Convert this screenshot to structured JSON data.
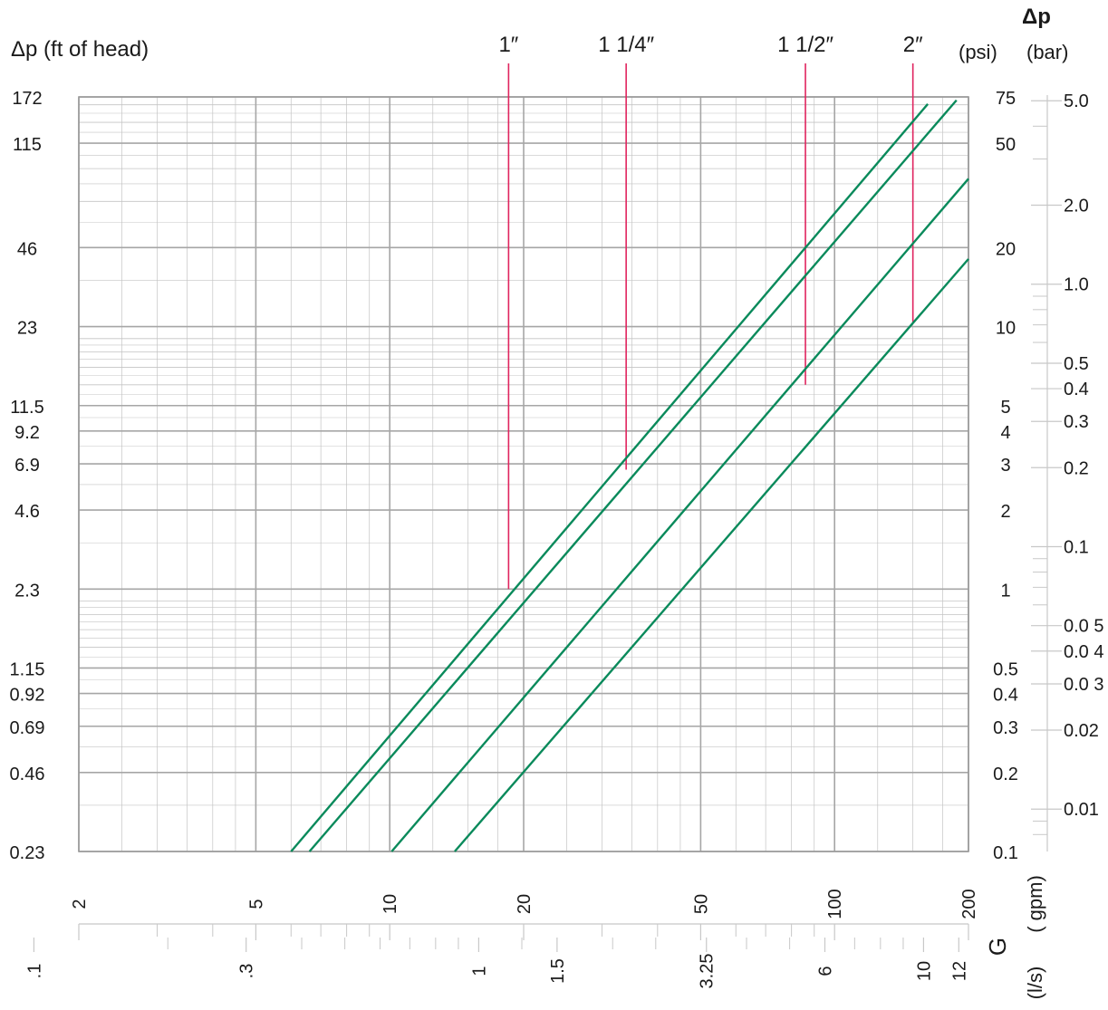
{
  "chart_data": {
    "type": "line",
    "scale": "log-log",
    "left_axis_title": "Δp (ft of head)",
    "left_ticks": [
      {
        "psi": 75,
        "label": "172"
      },
      {
        "psi": 50,
        "label": "115"
      },
      {
        "psi": 20,
        "label": "46"
      },
      {
        "psi": 10,
        "label": "23"
      },
      {
        "psi": 5,
        "label": "11.5"
      },
      {
        "psi": 4,
        "label": "9.2"
      },
      {
        "psi": 3,
        "label": "6.9"
      },
      {
        "psi": 2,
        "label": "4.6"
      },
      {
        "psi": 1,
        "label": "2.3"
      },
      {
        "psi": 0.5,
        "label": "1.15"
      },
      {
        "psi": 0.4,
        "label": "0.92"
      },
      {
        "psi": 0.3,
        "label": "0.69"
      },
      {
        "psi": 0.2,
        "label": "0.46"
      },
      {
        "psi": 0.1,
        "label": "0.23"
      }
    ],
    "psi_title": "(psi)",
    "psi_ticks": [
      {
        "psi": 75,
        "label": "75"
      },
      {
        "psi": 50,
        "label": "50"
      },
      {
        "psi": 20,
        "label": "20"
      },
      {
        "psi": 10,
        "label": "10"
      },
      {
        "psi": 5,
        "label": "5"
      },
      {
        "psi": 4,
        "label": "4"
      },
      {
        "psi": 3,
        "label": "3"
      },
      {
        "psi": 2,
        "label": "2"
      },
      {
        "psi": 1,
        "label": "1"
      },
      {
        "psi": 0.5,
        "label": "0.5"
      },
      {
        "psi": 0.4,
        "label": "0.4"
      },
      {
        "psi": 0.3,
        "label": "0.3"
      },
      {
        "psi": 0.2,
        "label": "0.2"
      },
      {
        "psi": 0.1,
        "label": "0.1"
      }
    ],
    "bar_title_symbol": "Δp",
    "bar_title": "(bar)",
    "bar_labeled": [
      {
        "bar": 5.0,
        "label": "5.0"
      },
      {
        "bar": 2.0,
        "label": "2.0"
      },
      {
        "bar": 1.0,
        "label": "1.0"
      },
      {
        "bar": 0.5,
        "label": "0.5"
      },
      {
        "bar": 0.4,
        "label": "0.4"
      },
      {
        "bar": 0.3,
        "label": "0.3"
      },
      {
        "bar": 0.2,
        "label": "0.2"
      },
      {
        "bar": 0.1,
        "label": "0.1"
      },
      {
        "bar": 0.05,
        "label": "0.0 5"
      },
      {
        "bar": 0.04,
        "label": "0.0 4"
      },
      {
        "bar": 0.03,
        "label": "0.0 3"
      },
      {
        "bar": 0.02,
        "label": "0.02"
      },
      {
        "bar": 0.01,
        "label": "0.01"
      }
    ],
    "bar_minor": [
      4,
      3,
      0.9,
      0.8,
      0.7,
      0.6,
      0.09,
      0.08,
      0.07,
      0.06,
      0.009,
      0.008
    ],
    "x_gpm_range": [
      2,
      200
    ],
    "gpm_ticks": [
      {
        "gpm": 2,
        "label": "2"
      },
      {
        "gpm": 5,
        "label": "5"
      },
      {
        "gpm": 10,
        "label": "10"
      },
      {
        "gpm": 20,
        "label": "20"
      },
      {
        "gpm": 50,
        "label": "50"
      },
      {
        "gpm": 100,
        "label": "100"
      },
      {
        "gpm": 200,
        "label": "200"
      }
    ],
    "gpm_minor": [
      3,
      4,
      6,
      7,
      8,
      9,
      30,
      40,
      60,
      70,
      80,
      90
    ],
    "gpm_title": "( gpm)",
    "flow_symbol": "G",
    "lps_ticks": [
      {
        "lps": 0.1,
        "label": ".1"
      },
      {
        "lps": 0.3,
        "label": ".3"
      },
      {
        "lps": 1,
        "label": "1"
      },
      {
        "lps": 1.5,
        "label": "1.5"
      },
      {
        "lps": 3.25,
        "label": "3.25"
      },
      {
        "lps": 6,
        "label": "6"
      },
      {
        "lps": 10,
        "label": "10"
      },
      {
        "lps": 12,
        "label": "12"
      }
    ],
    "lps_minor": [
      0.2,
      0.4,
      0.5,
      0.6,
      0.7,
      0.8,
      0.9,
      1.25,
      2,
      2.5,
      4,
      5,
      7,
      8,
      9
    ],
    "lps_title": "(l/s)",
    "grid": true,
    "series": [
      {
        "name": "1″",
        "connection_gpm": 18.5,
        "connection_top_psi": 1.0,
        "points": [
          [
            6.0,
            0.1
          ],
          [
            162,
            70.5
          ]
        ]
      },
      {
        "name": "1 1/4″",
        "connection_gpm": 34,
        "connection_top_psi": 2.85,
        "points": [
          [
            6.6,
            0.1
          ],
          [
            188,
            72.9
          ]
        ]
      },
      {
        "name": "1 1/2″",
        "connection_gpm": 86,
        "connection_top_psi": 6.0,
        "points": [
          [
            10.1,
            0.1
          ],
          [
            200,
            36.6
          ]
        ]
      },
      {
        "name": "2″",
        "connection_gpm": 150,
        "connection_top_psi": 10.4,
        "points": [
          [
            14.0,
            0.1
          ],
          [
            200,
            18.1
          ]
        ]
      }
    ],
    "colors": {
      "curve": "#0a8a5b",
      "connection": "#e0245e",
      "grid_major": "#a6a6a6",
      "grid_minor": "#c4c4c4"
    }
  }
}
